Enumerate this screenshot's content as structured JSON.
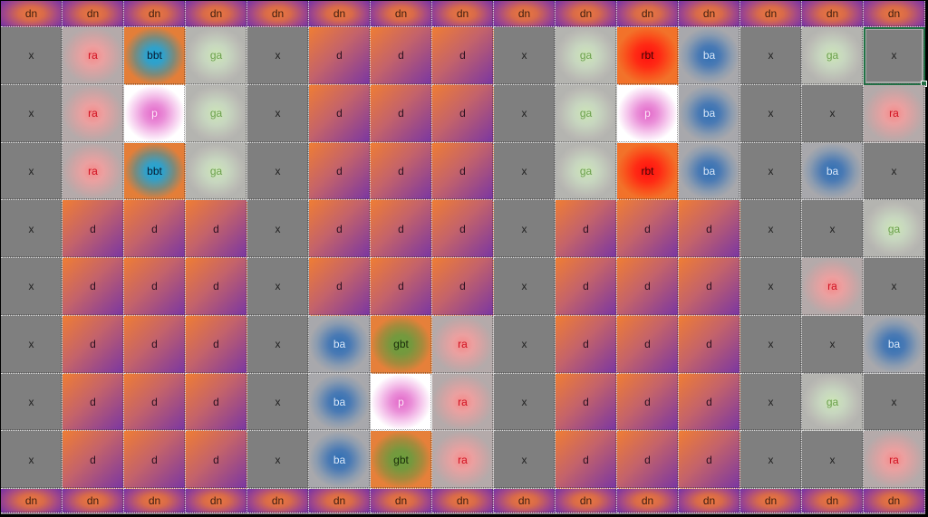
{
  "sheet": {
    "header_row": [
      "dn",
      "dn",
      "dn",
      "dn",
      "dn",
      "dn",
      "dn",
      "dn",
      "dn",
      "dn",
      "dn",
      "dn",
      "dn",
      "dn",
      "dn"
    ],
    "rows": [
      [
        "x",
        "ra",
        "bbt",
        "ga",
        "x",
        "d",
        "d",
        "d",
        "x",
        "ga",
        "rbt",
        "ba",
        "x",
        "ga",
        "x"
      ],
      [
        "x",
        "ra",
        "p",
        "ga",
        "x",
        "d",
        "d",
        "d",
        "x",
        "ga",
        "p",
        "ba",
        "x",
        "x",
        "ra"
      ],
      [
        "x",
        "ra",
        "bbt",
        "ga",
        "x",
        "d",
        "d",
        "d",
        "x",
        "ga",
        "rbt",
        "ba",
        "x",
        "ba",
        "x"
      ],
      [
        "x",
        "d",
        "d",
        "d",
        "x",
        "d",
        "d",
        "d",
        "x",
        "d",
        "d",
        "d",
        "x",
        "x",
        "ga"
      ],
      [
        "x",
        "d",
        "d",
        "d",
        "x",
        "d",
        "d",
        "d",
        "x",
        "d",
        "d",
        "d",
        "x",
        "ra",
        "x"
      ],
      [
        "x",
        "d",
        "d",
        "d",
        "x",
        "ba",
        "gbt",
        "ra",
        "x",
        "d",
        "d",
        "d",
        "x",
        "x",
        "ba"
      ],
      [
        "x",
        "d",
        "d",
        "d",
        "x",
        "ba",
        "p",
        "ra",
        "x",
        "d",
        "d",
        "d",
        "x",
        "ga",
        "x"
      ],
      [
        "x",
        "d",
        "d",
        "d",
        "x",
        "ba",
        "gbt",
        "ra",
        "x",
        "d",
        "d",
        "d",
        "x",
        "x",
        "ra"
      ]
    ],
    "footer_row": [
      "dn",
      "dn",
      "dn",
      "dn",
      "dn",
      "dn",
      "dn",
      "dn",
      "dn",
      "dn",
      "dn",
      "dn",
      "dn",
      "dn",
      "dn"
    ],
    "selected_cell": {
      "row": 0,
      "col": 14
    },
    "colors": {
      "grid_background": "#7f7f7f",
      "selection": "#217346",
      "d_gradient": [
        "#ef7d34",
        "#7a36a2"
      ],
      "ra": "#f58a8a",
      "ga": "#cde6b8",
      "ba": "#2f6fb5",
      "bbt": "#1ea8d8",
      "rbt": "#ff1010",
      "gbt": "#6aa03c",
      "p": "#e266c8"
    }
  }
}
